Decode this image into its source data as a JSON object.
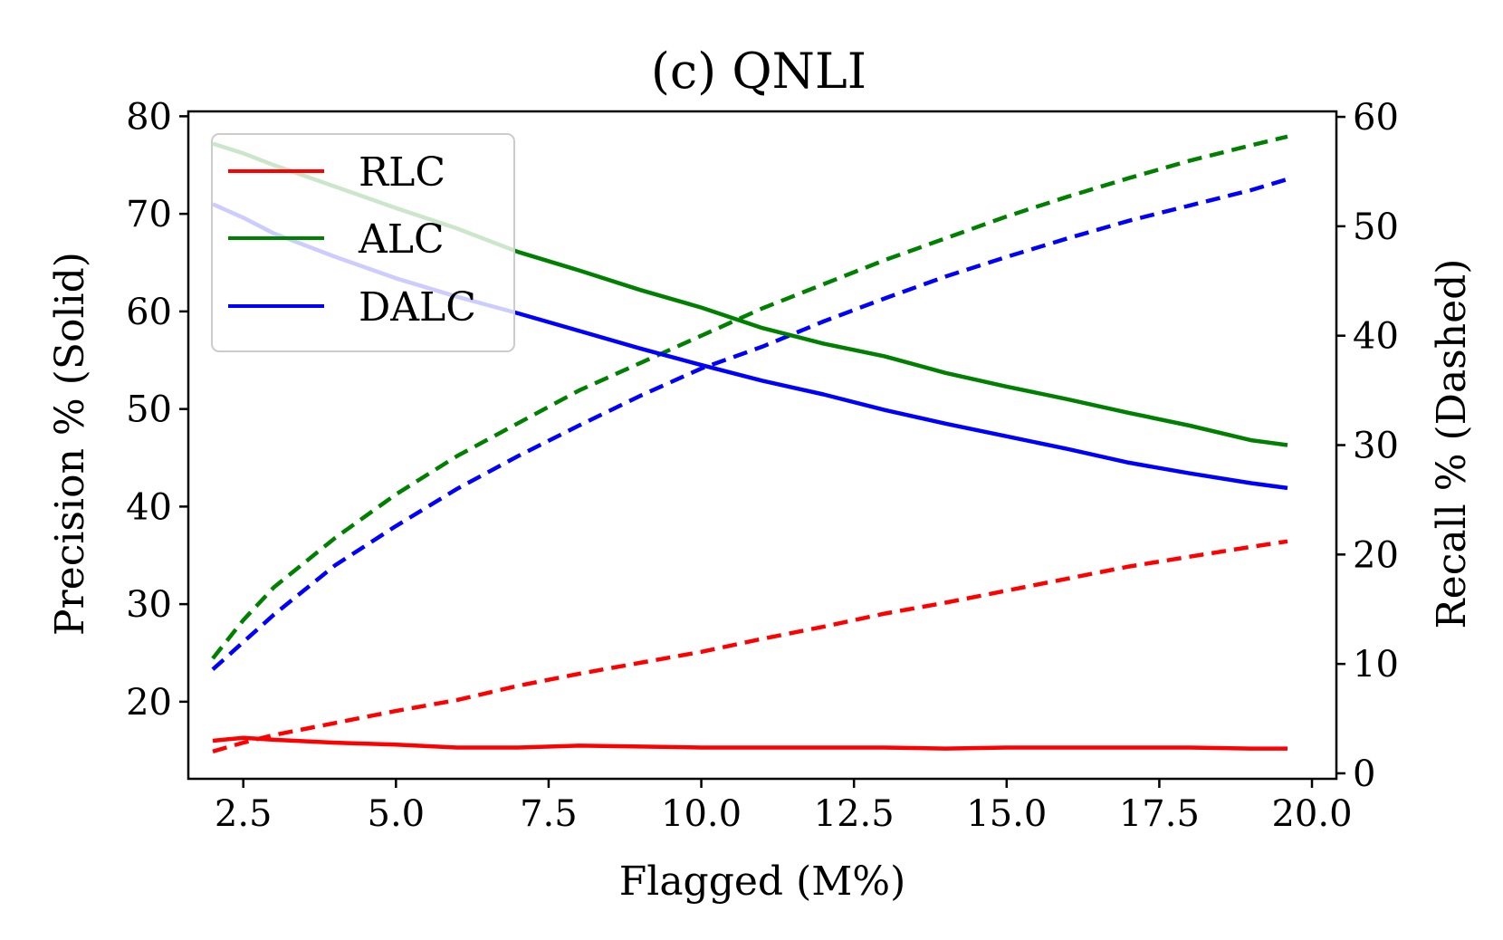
{
  "chart_data": {
    "type": "line",
    "title": "(c) QNLI",
    "xlabel": "Flagged (M%)",
    "ylabel_left": "Precision % (Solid)",
    "ylabel_right": "Recall % (Dashed)",
    "xlim": [
      1.6,
      20.4
    ],
    "ylim_left": [
      12.1,
      80.5
    ],
    "ylim_right": [
      -0.5,
      60.5
    ],
    "xticks": [
      "2.5",
      "5.0",
      "7.5",
      "10.0",
      "12.5",
      "15.0",
      "17.5",
      "20.0"
    ],
    "xtick_values": [
      2.5,
      5.0,
      7.5,
      10.0,
      12.5,
      15.0,
      17.5,
      20.0
    ],
    "yticks_left": [
      "20",
      "30",
      "40",
      "50",
      "60",
      "70",
      "80"
    ],
    "ytick_values_left": [
      20,
      30,
      40,
      50,
      60,
      70,
      80
    ],
    "yticks_right": [
      "0",
      "10",
      "20",
      "30",
      "40",
      "50",
      "60"
    ],
    "ytick_values_right": [
      0,
      10,
      20,
      30,
      40,
      50,
      60
    ],
    "grid": false,
    "legend_position": "top-left",
    "legend": [
      "RLC",
      "ALC",
      "DALC"
    ],
    "x": [
      2.0,
      2.5,
      3.0,
      4.0,
      5.0,
      6.0,
      7.0,
      8.0,
      9.0,
      10.0,
      11.0,
      12.0,
      13.0,
      14.0,
      15.0,
      16.0,
      17.0,
      18.0,
      19.0,
      19.6
    ],
    "series": [
      {
        "name": "RLC",
        "color": "#ff0000",
        "precision": [
          16.0,
          16.3,
          16.1,
          15.8,
          15.6,
          15.3,
          15.3,
          15.5,
          15.4,
          15.3,
          15.3,
          15.3,
          15.3,
          15.2,
          15.3,
          15.3,
          15.3,
          15.3,
          15.2,
          15.2
        ],
        "recall": [
          2.0,
          2.8,
          3.5,
          4.6,
          5.7,
          6.7,
          8.0,
          9.1,
          10.1,
          11.1,
          12.3,
          13.4,
          14.6,
          15.6,
          16.7,
          17.8,
          18.9,
          19.8,
          20.7,
          21.2
        ]
      },
      {
        "name": "ALC",
        "color": "#008000",
        "precision": [
          77.2,
          76.2,
          75.0,
          72.8,
          70.6,
          68.5,
          66.1,
          64.2,
          62.2,
          60.4,
          58.3,
          56.7,
          55.4,
          53.7,
          52.3,
          51.0,
          49.6,
          48.3,
          46.8,
          46.3
        ],
        "recall": [
          10.5,
          14.0,
          17.0,
          21.5,
          25.5,
          29.0,
          32.0,
          35.0,
          37.5,
          40.0,
          42.5,
          44.7,
          46.9,
          48.9,
          50.9,
          52.7,
          54.4,
          56.0,
          57.4,
          58.2
        ]
      },
      {
        "name": "DALC",
        "color": "#0000ff",
        "precision": [
          71.0,
          69.6,
          68.0,
          65.6,
          63.4,
          61.5,
          59.8,
          58.0,
          56.2,
          54.5,
          52.9,
          51.5,
          49.9,
          48.5,
          47.2,
          45.9,
          44.5,
          43.4,
          42.4,
          41.9
        ],
        "recall": [
          9.5,
          12.0,
          14.5,
          19.0,
          22.6,
          26.0,
          29.0,
          31.8,
          34.5,
          37.0,
          39.0,
          41.3,
          43.4,
          45.4,
          47.2,
          48.9,
          50.5,
          51.9,
          53.3,
          54.3
        ]
      }
    ]
  }
}
